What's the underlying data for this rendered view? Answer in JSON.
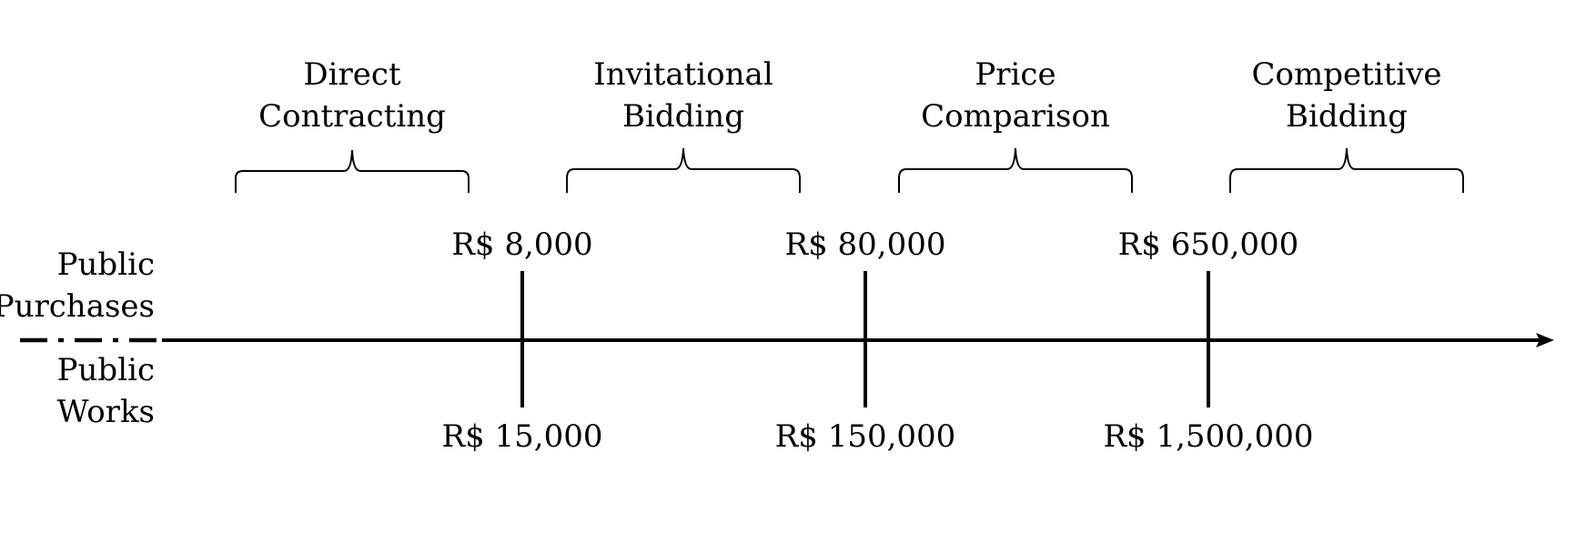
{
  "categories": [
    {
      "line1": "Direct",
      "line2": "Contracting"
    },
    {
      "line1": "Invitational",
      "line2": "Bidding"
    },
    {
      "line1": "Price",
      "line2": "Comparison"
    },
    {
      "line1": "Competitive",
      "line2": "Bidding"
    }
  ],
  "side_labels": {
    "purchases": {
      "line1": "Public",
      "line2": "Purchases"
    },
    "works": {
      "line1": "Public",
      "line2": "Works"
    }
  },
  "thresholds": [
    {
      "purchases": "R$ 8,000",
      "works": "R$ 15,000"
    },
    {
      "purchases": "R$ 80,000",
      "works": "R$ 150,000"
    },
    {
      "purchases": "R$ 650,000",
      "works": "R$ 1,500,000"
    }
  ]
}
